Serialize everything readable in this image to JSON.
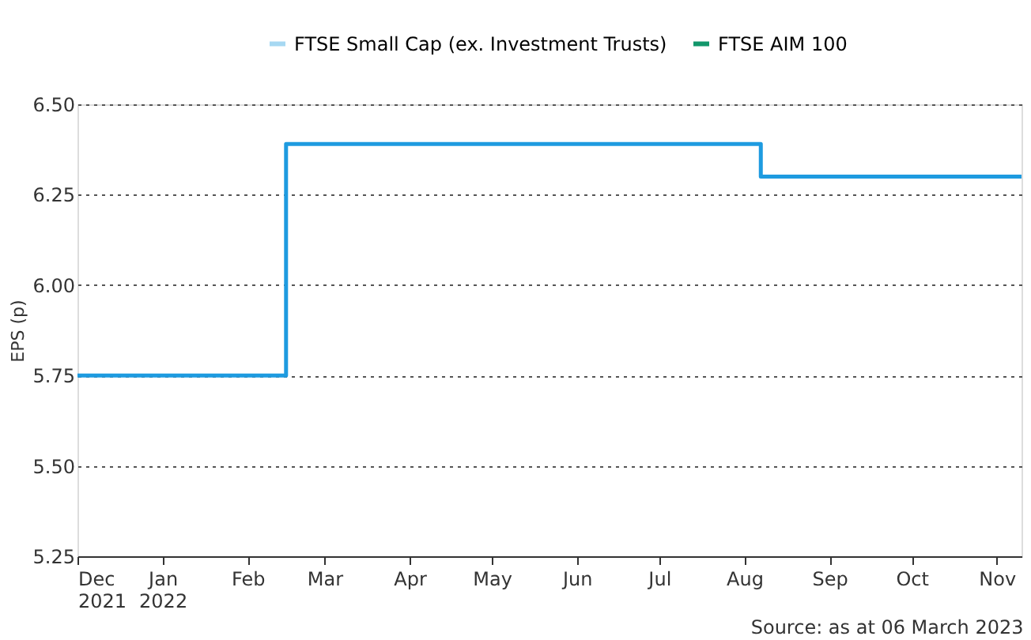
{
  "chart_data": {
    "type": "line",
    "ylabel": "EPS (p)",
    "x": [
      "2021-12-01",
      "2022-02-15",
      "2022-08-07",
      "2022-11-10"
    ],
    "series": [
      {
        "type": "step",
        "color": "#1e9be0",
        "values": [
          5.75,
          6.39,
          6.3,
          6.3
        ]
      },
      {
        "name": "FTSE Small Cap (ex. Investment Trusts)",
        "color": "#a6d8f2",
        "values": [
          null,
          null,
          null,
          null
        ]
      },
      {
        "name": "FTSE AIM 100",
        "color": "#13976b",
        "values": [
          null,
          null,
          null,
          null
        ]
      }
    ],
    "xlim": [
      "2021-12-01",
      "2022-11-10"
    ],
    "xticks": [
      {
        "value": "2021-12-01",
        "label": "Dec 2021"
      },
      {
        "value": "2022-01-01",
        "label": "Jan 2022"
      },
      {
        "value": "2022-02-01",
        "label": "Feb"
      },
      {
        "value": "2022-03-01",
        "label": "Mar"
      },
      {
        "value": "2022-04-01",
        "label": "Apr"
      },
      {
        "value": "2022-05-01",
        "label": "May"
      },
      {
        "value": "2022-06-01",
        "label": "Jun"
      },
      {
        "value": "2022-07-01",
        "label": "Jul"
      },
      {
        "value": "2022-08-01",
        "label": "Aug"
      },
      {
        "value": "2022-09-01",
        "label": "Sep"
      },
      {
        "value": "2022-10-01",
        "label": "Oct"
      },
      {
        "value": "2022-11-01",
        "label": "Nov"
      }
    ],
    "ylim": [
      5.25,
      6.5
    ],
    "yticks": [
      {
        "value": 5.25,
        "label": "5.25"
      },
      {
        "value": 5.5,
        "label": "5.50"
      },
      {
        "value": 5.75,
        "label": "5.75"
      },
      {
        "value": 6.0,
        "label": "6.00"
      },
      {
        "value": 6.25,
        "label": "6.25"
      },
      {
        "value": 6.5,
        "label": "6.50"
      }
    ],
    "grid": "y",
    "legend": "top",
    "annotations": [
      "Source: as at 06 March 2023"
    ]
  }
}
